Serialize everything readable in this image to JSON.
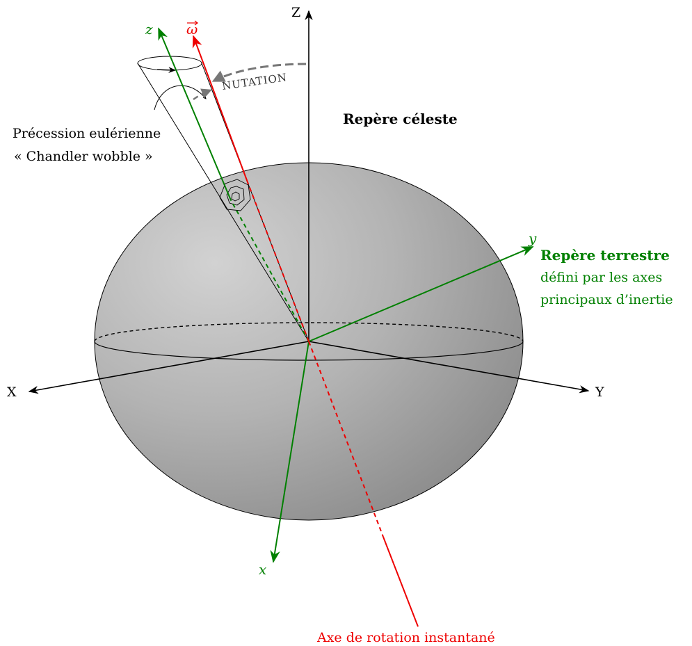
{
  "labels": {
    "axis_Z": "Z",
    "axis_X": "X",
    "axis_Y": "Y",
    "axis_z": "z",
    "axis_y": "y",
    "axis_x": "x",
    "omega": "ω",
    "celestial_frame": "Repère céleste",
    "earth_frame_title": "Repère terrestre",
    "earth_frame_line1": "défini par les axes",
    "earth_frame_line2": "principaux d’inertie",
    "precession_line1": "Précession eulérienne",
    "precession_line2": "« Chandler wobble »",
    "nutation": "NUTATION",
    "rotation_axis": "Axe de rotation instantané"
  },
  "colors": {
    "black": "#000000",
    "green": "#008000",
    "red": "#ee0000",
    "nutation_gray": "#777777"
  }
}
